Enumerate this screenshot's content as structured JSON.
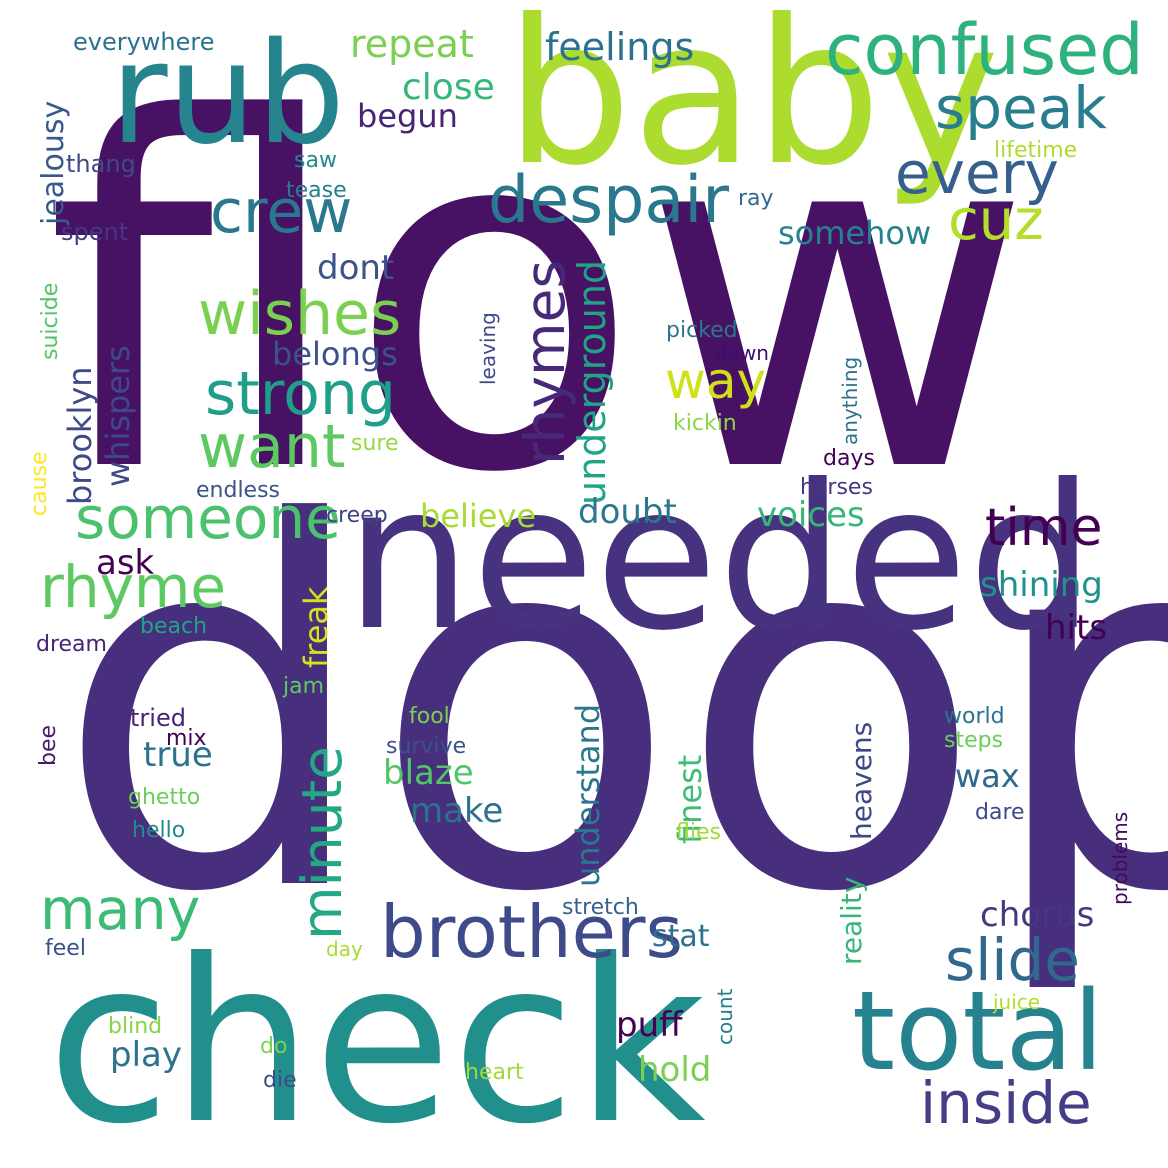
{
  "words": [
    {
      "id": "flow",
      "text": "flow",
      "color": "#471164"
    },
    {
      "id": "doop",
      "text": "doop",
      "color": "#472f7d"
    },
    {
      "id": "check",
      "text": "check",
      "color": "#21908d"
    },
    {
      "id": "baby",
      "text": "baby",
      "color": "#addc30"
    },
    {
      "id": "needed",
      "text": "needed",
      "color": "#46327e"
    },
    {
      "id": "rub",
      "text": "rub",
      "color": "#25848e"
    },
    {
      "id": "total",
      "text": "total",
      "color": "#26828e"
    },
    {
      "id": "brothers",
      "text": "brothers",
      "color": "#3e4a89"
    },
    {
      "id": "confused",
      "text": "confused",
      "color": "#2db27d"
    },
    {
      "id": "despair",
      "text": "despair",
      "color": "#2a788e"
    },
    {
      "id": "someone",
      "text": "someone",
      "color": "#4ac16d"
    },
    {
      "id": "strong",
      "text": "strong",
      "color": "#1f9e89"
    },
    {
      "id": "wishes",
      "text": "wishes",
      "color": "#7ad151"
    },
    {
      "id": "want",
      "text": "want",
      "color": "#5ec962"
    },
    {
      "id": "crew",
      "text": "crew",
      "color": "#2a788e"
    },
    {
      "id": "speak",
      "text": "speak",
      "color": "#287d8e"
    },
    {
      "id": "every",
      "text": "every",
      "color": "#355f8d"
    },
    {
      "id": "cuz",
      "text": "cuz",
      "color": "#b5de2b"
    },
    {
      "id": "rhyme",
      "text": "rhyme",
      "color": "#5ec962"
    },
    {
      "id": "many",
      "text": "many",
      "color": "#3bbb75"
    },
    {
      "id": "slide",
      "text": "slide",
      "color": "#31688e"
    },
    {
      "id": "inside",
      "text": "inside",
      "color": "#433e85"
    },
    {
      "id": "time",
      "text": "time",
      "color": "#440154"
    },
    {
      "id": "rhymes",
      "text": "rhymes",
      "color": "#482878"
    },
    {
      "id": "minute",
      "text": "minute",
      "color": "#22a884"
    },
    {
      "id": "way",
      "text": "way",
      "color": "#d0e11c"
    },
    {
      "id": "feelings",
      "text": "feelings",
      "color": "#2c728e"
    },
    {
      "id": "repeat",
      "text": "repeat",
      "color": "#7ad151"
    },
    {
      "id": "close",
      "text": "close",
      "color": "#35b779"
    },
    {
      "id": "begun",
      "text": "begun",
      "color": "#482475"
    },
    {
      "id": "somehow",
      "text": "somehow",
      "color": "#26828e"
    },
    {
      "id": "dont",
      "text": "dont",
      "color": "#3b528b"
    },
    {
      "id": "belongs",
      "text": "belongs",
      "color": "#3b528b"
    },
    {
      "id": "underground",
      "text": "underground",
      "color": "#20a486"
    },
    {
      "id": "brooklyn",
      "text": "brooklyn",
      "color": "#3e4a89"
    },
    {
      "id": "whispers",
      "text": "whispers",
      "color": "#3e4989"
    },
    {
      "id": "jealousy",
      "text": "jealousy",
      "color": "#38598c"
    },
    {
      "id": "everywhere",
      "text": "everywhere",
      "color": "#2c728e"
    },
    {
      "id": "thang",
      "text": "thang",
      "color": "#3e4a89"
    },
    {
      "id": "saw",
      "text": "saw",
      "color": "#23898e"
    },
    {
      "id": "tease",
      "text": "tease",
      "color": "#287c8e"
    },
    {
      "id": "spent",
      "text": "spent",
      "color": "#453781"
    },
    {
      "id": "lifetime",
      "text": "lifetime",
      "color": "#addc30"
    },
    {
      "id": "ray",
      "text": "ray",
      "color": "#31688e"
    },
    {
      "id": "suicide",
      "text": "suicide",
      "color": "#52c569"
    },
    {
      "id": "cause",
      "text": "cause",
      "color": "#fde725"
    },
    {
      "id": "ask",
      "text": "ask",
      "color": "#440154"
    },
    {
      "id": "believe",
      "text": "believe",
      "color": "#a8db34"
    },
    {
      "id": "doubt",
      "text": "doubt",
      "color": "#2a788e"
    },
    {
      "id": "voices",
      "text": "voices",
      "color": "#35b779"
    },
    {
      "id": "shining",
      "text": "shining",
      "color": "#21918c"
    },
    {
      "id": "hits",
      "text": "hits",
      "color": "#440154"
    },
    {
      "id": "chorus",
      "text": "chorus",
      "color": "#453781"
    },
    {
      "id": "freak",
      "text": "freak",
      "color": "#d8e219"
    },
    {
      "id": "creep",
      "text": "creep",
      "color": "#424086"
    },
    {
      "id": "endless",
      "text": "endless",
      "color": "#3b528b"
    },
    {
      "id": "sure",
      "text": "sure",
      "color": "#95d840"
    },
    {
      "id": "kickin",
      "text": "kickin",
      "color": "#8bd646"
    },
    {
      "id": "picked",
      "text": "picked",
      "color": "#2a788e"
    },
    {
      "id": "dawn",
      "text": "dawn",
      "color": "#3b0f70"
    },
    {
      "id": "leaving",
      "text": "leaving",
      "color": "#3e4a89"
    },
    {
      "id": "anything",
      "text": "anything",
      "color": "#2c728e"
    },
    {
      "id": "days",
      "text": "days",
      "color": "#440154"
    },
    {
      "id": "horses",
      "text": "horses",
      "color": "#453781"
    },
    {
      "id": "dream",
      "text": "dream",
      "color": "#482475"
    },
    {
      "id": "beach",
      "text": "beach",
      "color": "#20a486"
    },
    {
      "id": "jam",
      "text": "jam",
      "color": "#5ec962"
    },
    {
      "id": "bee",
      "text": "bee",
      "color": "#481a6c"
    },
    {
      "id": "tried",
      "text": "tried",
      "color": "#482475"
    },
    {
      "id": "mix",
      "text": "mix",
      "color": "#440154"
    },
    {
      "id": "true",
      "text": "true",
      "color": "#2c728e"
    },
    {
      "id": "ghetto",
      "text": "ghetto",
      "color": "#6ccd5a"
    },
    {
      "id": "hello",
      "text": "hello",
      "color": "#238a8d"
    },
    {
      "id": "blaze",
      "text": "blaze",
      "color": "#52c569"
    },
    {
      "id": "make",
      "text": "make",
      "color": "#2c728e"
    },
    {
      "id": "understand",
      "text": "understand",
      "color": "#2a788e"
    },
    {
      "id": "fool",
      "text": "fool",
      "color": "#7ad151"
    },
    {
      "id": "survive",
      "text": "survive",
      "color": "#3b528b"
    },
    {
      "id": "finest",
      "text": "finest",
      "color": "#3dbc74"
    },
    {
      "id": "heavens",
      "text": "heavens",
      "color": "#404688"
    },
    {
      "id": "reality",
      "text": "reality",
      "color": "#35b779"
    },
    {
      "id": "wax",
      "text": "wax",
      "color": "#31688e"
    },
    {
      "id": "world",
      "text": "world",
      "color": "#2c728e"
    },
    {
      "id": "steps",
      "text": "steps",
      "color": "#6ccd5a"
    },
    {
      "id": "dare",
      "text": "dare",
      "color": "#3e4a89"
    },
    {
      "id": "problems",
      "text": "problems",
      "color": "#460a5d"
    },
    {
      "id": "flies",
      "text": "flies",
      "color": "#a0da39"
    },
    {
      "id": "stretch",
      "text": "stretch",
      "color": "#355f8d"
    },
    {
      "id": "stat",
      "text": "stat",
      "color": "#2c728e"
    },
    {
      "id": "day",
      "text": "day",
      "color": "#a8db34"
    },
    {
      "id": "feel",
      "text": "feel",
      "color": "#3b528b"
    },
    {
      "id": "puff",
      "text": "puff",
      "color": "#440154"
    },
    {
      "id": "play",
      "text": "play",
      "color": "#2c728e"
    },
    {
      "id": "hold",
      "text": "hold",
      "color": "#7ad151"
    },
    {
      "id": "count",
      "text": "count",
      "color": "#277f8e"
    },
    {
      "id": "blind",
      "text": "blind",
      "color": "#86d549"
    },
    {
      "id": "do",
      "text": "do",
      "color": "#7ad151"
    },
    {
      "id": "die",
      "text": "die",
      "color": "#3e4a89"
    },
    {
      "id": "heart",
      "text": "heart",
      "color": "#a0da39"
    },
    {
      "id": "juice",
      "text": "juice",
      "color": "#b5de2b"
    }
  ]
}
